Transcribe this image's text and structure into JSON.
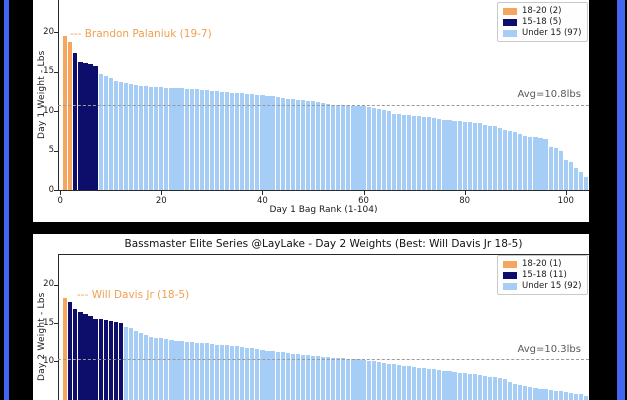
{
  "window": {
    "background": "#000000",
    "border_color": "#4266f2"
  },
  "colors": {
    "orange": "#f5a55c",
    "navy": "#0d0d6b",
    "lightblue": "#a6cdf5",
    "avg_line": "#9a9a9a",
    "avg_text": "#595959",
    "annotation": "#f0a050"
  },
  "chart_data": [
    {
      "type": "bar",
      "ylabel": "Day 1 Weight - Lbs",
      "xlabel": "Day 1 Bag Rank (1-104)",
      "annotation": "--- Brandon Palaniuk (19-7)",
      "avg_label": "Avg=10.8lbs",
      "avg_value": 10.8,
      "ylim": [
        0,
        24
      ],
      "x_ticks": [
        0,
        20,
        40,
        60,
        80,
        100
      ],
      "y_ticks": [
        0,
        5,
        10,
        15,
        20
      ],
      "grid": false,
      "legend_position": "upper right",
      "legend": [
        {
          "label": "18-20 (2)",
          "color_key": "orange"
        },
        {
          "label": "15-18 (5)",
          "color_key": "navy"
        },
        {
          "label": "Under 15 (97)",
          "color_key": "lightblue"
        }
      ],
      "color_rules": {
        "orange_min": 18,
        "navy_min": 15
      },
      "values": [
        19.44,
        18.75,
        17.31,
        16.25,
        16.12,
        16.0,
        15.75,
        14.69,
        14.38,
        14.12,
        13.81,
        13.62,
        13.56,
        13.44,
        13.31,
        13.19,
        13.12,
        13.06,
        13.0,
        13.0,
        12.94,
        12.94,
        12.88,
        12.88,
        12.81,
        12.81,
        12.75,
        12.69,
        12.62,
        12.56,
        12.5,
        12.44,
        12.38,
        12.31,
        12.31,
        12.25,
        12.19,
        12.12,
        12.06,
        12.0,
        11.94,
        11.88,
        11.81,
        11.69,
        11.56,
        11.5,
        11.44,
        11.38,
        11.31,
        11.25,
        11.12,
        11.0,
        10.94,
        10.81,
        10.75,
        10.75,
        10.72,
        10.69,
        10.69,
        10.66,
        10.5,
        10.38,
        10.25,
        10.12,
        10.0,
        9.62,
        9.56,
        9.5,
        9.44,
        9.38,
        9.31,
        9.25,
        9.19,
        9.06,
        8.95,
        8.88,
        8.81,
        8.75,
        8.72,
        8.66,
        8.59,
        8.53,
        8.5,
        8.22,
        8.16,
        8.09,
        7.88,
        7.62,
        7.5,
        7.38,
        7.06,
        6.88,
        6.75,
        6.69,
        6.59,
        6.47,
        5.41,
        5.28,
        5.0,
        3.81,
        3.56,
        2.84,
        2.3,
        1.6
      ]
    },
    {
      "type": "bar",
      "title": "Bassmaster Elite Series @LayLake - Day 2 Weights (Best: Will Davis Jr 18-5)",
      "ylabel": "Day 2 Weight - Lbs",
      "annotation": "--- Will Davis Jr (18-5)",
      "avg_label": "Avg=10.3lbs",
      "avg_value": 10.3,
      "ylim": [
        0,
        24
      ],
      "y_ticks": [
        10,
        15,
        20
      ],
      "grid": false,
      "legend_position": "upper right",
      "legend": [
        {
          "label": "18-20 (1)",
          "color_key": "orange"
        },
        {
          "label": "15-18 (11)",
          "color_key": "navy"
        },
        {
          "label": "Under 15 (92)",
          "color_key": "lightblue"
        }
      ],
      "color_rules": {
        "orange_min": 18,
        "navy_min": 15
      },
      "values": [
        18.31,
        17.75,
        16.81,
        16.44,
        16.19,
        15.88,
        15.56,
        15.56,
        15.44,
        15.31,
        15.12,
        15.0,
        14.5,
        14.3,
        14.0,
        13.7,
        13.45,
        13.25,
        13.1,
        13.0,
        12.88,
        12.8,
        12.7,
        12.6,
        12.53,
        12.5,
        12.44,
        12.4,
        12.35,
        12.3,
        12.2,
        12.15,
        12.1,
        12.05,
        12.0,
        11.9,
        11.8,
        11.7,
        11.6,
        11.5,
        11.4,
        11.3,
        11.25,
        11.2,
        11.1,
        11.0,
        10.95,
        10.9,
        10.8,
        10.75,
        10.65,
        10.6,
        10.55,
        10.5,
        10.45,
        10.4,
        10.35,
        10.3,
        10.25,
        10.2,
        10.1,
        10.0,
        9.9,
        9.8,
        9.7,
        9.6,
        9.5,
        9.45,
        9.4,
        9.3,
        9.2,
        9.1,
        9.0,
        8.95,
        8.9,
        8.8,
        8.7,
        8.6,
        8.55,
        8.5,
        8.4,
        8.3,
        8.2,
        8.1,
        8.0,
        7.9,
        7.8,
        7.7,
        7.3,
        7.1,
        6.9,
        6.8,
        6.6,
        6.5,
        6.45,
        6.4,
        6.3,
        6.2,
        6.1,
        6.0,
        5.9,
        5.8,
        5.7,
        5.5
      ]
    }
  ]
}
